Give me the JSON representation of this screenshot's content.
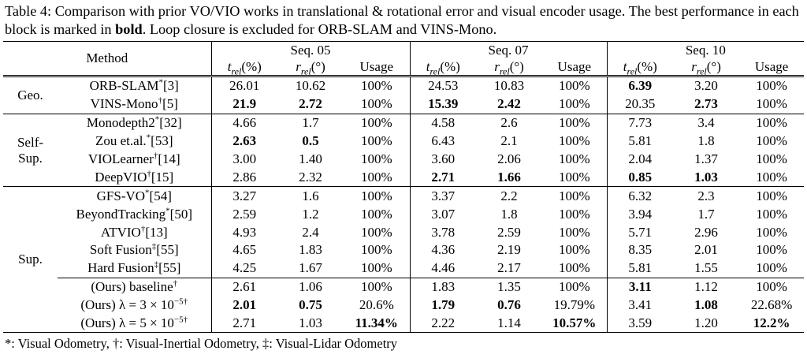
{
  "caption": {
    "label": "Table 4:",
    "text": "Comparison with prior VO/VIO works in translational & rotational error and visual encoder usage. The best performance in each block is marked in",
    "bold": "bold",
    "rest": ". Loop closure is excluded for ORB-SLAM and VINS-Mono."
  },
  "table": {
    "header": {
      "method": "Method",
      "seqs": [
        {
          "name": "Seq. 05",
          "cols": [
            {
              "sym": "t",
              "sub": "rel",
              "unit": "(%)"
            },
            {
              "sym": "r",
              "sub": "rel",
              "unit": "(°)"
            },
            {
              "name": "Usage"
            }
          ]
        },
        {
          "name": "Seq. 07",
          "cols": [
            {
              "sym": "t",
              "sub": "rel",
              "unit": "(%)"
            },
            {
              "sym": "r",
              "sub": "rel",
              "unit": "(°)"
            },
            {
              "name": "Usage"
            }
          ]
        },
        {
          "name": "Seq. 10",
          "cols": [
            {
              "sym": "t",
              "sub": "rel",
              "unit": "(%)"
            },
            {
              "sym": "r",
              "sub": "rel",
              "unit": "(°)"
            },
            {
              "name": "Usage"
            }
          ]
        }
      ]
    },
    "groups": [
      {
        "label": [
          "Geo."
        ],
        "rows": [
          {
            "method": {
              "name": "ORB-SLAM",
              "mark": "*",
              "ref": "[3]"
            },
            "cells": [
              "26.01",
              "10.62",
              "100%",
              "24.53",
              "10.83",
              "100%",
              "6.39",
              "3.20",
              "100%"
            ],
            "bold": [
              6
            ]
          },
          {
            "method": {
              "name": "VINS-Mono",
              "mark": "†",
              "ref": "[5]"
            },
            "cells": [
              "21.9",
              "2.72",
              "100%",
              "15.39",
              "2.42",
              "100%",
              "20.35",
              "2.73",
              "100%"
            ],
            "bold": [
              0,
              1,
              3,
              4,
              7
            ]
          }
        ]
      },
      {
        "label": [
          "Self-",
          "Sup."
        ],
        "rows": [
          {
            "method": {
              "name": "Monodepth2",
              "mark": "*",
              "ref": "[32]"
            },
            "cells": [
              "4.66",
              "1.7",
              "100%",
              "4.58",
              "2.6",
              "100%",
              "7.73",
              "3.4",
              "100%"
            ],
            "bold": []
          },
          {
            "method": {
              "name": "Zou et.al.",
              "mark": "*",
              "ref": "[53]"
            },
            "cells": [
              "2.63",
              "0.5",
              "100%",
              "6.43",
              "2.1",
              "100%",
              "5.81",
              "1.8",
              "100%"
            ],
            "bold": [
              0,
              1
            ]
          },
          {
            "method": {
              "name": "VIOLearner",
              "mark": "†",
              "ref": "[14]"
            },
            "cells": [
              "3.00",
              "1.40",
              "100%",
              "3.60",
              "2.06",
              "100%",
              "2.04",
              "1.37",
              "100%"
            ],
            "bold": []
          },
          {
            "method": {
              "name": "DeepVIO",
              "mark": "†",
              "ref": "[15]"
            },
            "cells": [
              "2.86",
              "2.32",
              "100%",
              "2.71",
              "1.66",
              "100%",
              "0.85",
              "1.03",
              "100%"
            ],
            "bold": [
              3,
              4,
              6,
              7
            ]
          }
        ]
      },
      {
        "label": [
          "Sup."
        ],
        "rows": [
          {
            "method": {
              "name": "GFS-VO",
              "mark": "*",
              "ref": "[54]"
            },
            "cells": [
              "3.27",
              "1.6",
              "100%",
              "3.37",
              "2.2",
              "100%",
              "6.32",
              "2.3",
              "100%"
            ],
            "bold": []
          },
          {
            "method": {
              "name": "BeyondTracking",
              "mark": "*",
              "ref": "[50]"
            },
            "cells": [
              "2.59",
              "1.2",
              "100%",
              "3.07",
              "1.8",
              "100%",
              "3.94",
              "1.7",
              "100%"
            ],
            "bold": []
          },
          {
            "method": {
              "name": "ATVIO",
              "mark": "†",
              "ref": "[13]"
            },
            "cells": [
              "4.93",
              "2.4",
              "100%",
              "3.78",
              "2.59",
              "100%",
              "5.71",
              "2.96",
              "100%"
            ],
            "bold": []
          },
          {
            "method": {
              "name": "Soft Fusion",
              "mark": "‡",
              "ref": "[55]"
            },
            "cells": [
              "4.65",
              "1.83",
              "100%",
              "4.36",
              "2.19",
              "100%",
              "8.35",
              "2.01",
              "100%"
            ],
            "bold": []
          },
          {
            "method": {
              "name": "Hard Fusion",
              "mark": "‡",
              "ref": "[55]"
            },
            "cells": [
              "4.25",
              "1.67",
              "100%",
              "4.46",
              "2.17",
              "100%",
              "5.81",
              "1.55",
              "100%"
            ],
            "bold": []
          },
          {
            "method": {
              "name": "(Ours) baseline",
              "mark": "†"
            },
            "cells": [
              "2.61",
              "1.06",
              "100%",
              "1.83",
              "1.35",
              "100%",
              "3.11",
              "1.12",
              "100%"
            ],
            "bold": [
              6
            ],
            "separator": true
          },
          {
            "method": {
              "name": "(Ours) λ = 3 × 10",
              "exp": "−5",
              "mark": "†"
            },
            "cells": [
              "2.01",
              "0.75",
              "20.6%",
              "1.79",
              "0.76",
              "19.79%",
              "3.41",
              "1.08",
              "22.68%"
            ],
            "bold": [
              0,
              1,
              3,
              4,
              7
            ]
          },
          {
            "method": {
              "name": "(Ours) λ = 5 × 10",
              "exp": "−5",
              "mark": "†"
            },
            "cells": [
              "2.71",
              "1.03",
              "11.34%",
              "2.22",
              "1.14",
              "10.57%",
              "3.59",
              "1.20",
              "12.2%"
            ],
            "bold": [
              2,
              5,
              8
            ]
          }
        ]
      }
    ]
  },
  "footnote": "*: Visual Odometry, †: Visual-Inertial Odometry, ‡: Visual-Lidar Odometry"
}
